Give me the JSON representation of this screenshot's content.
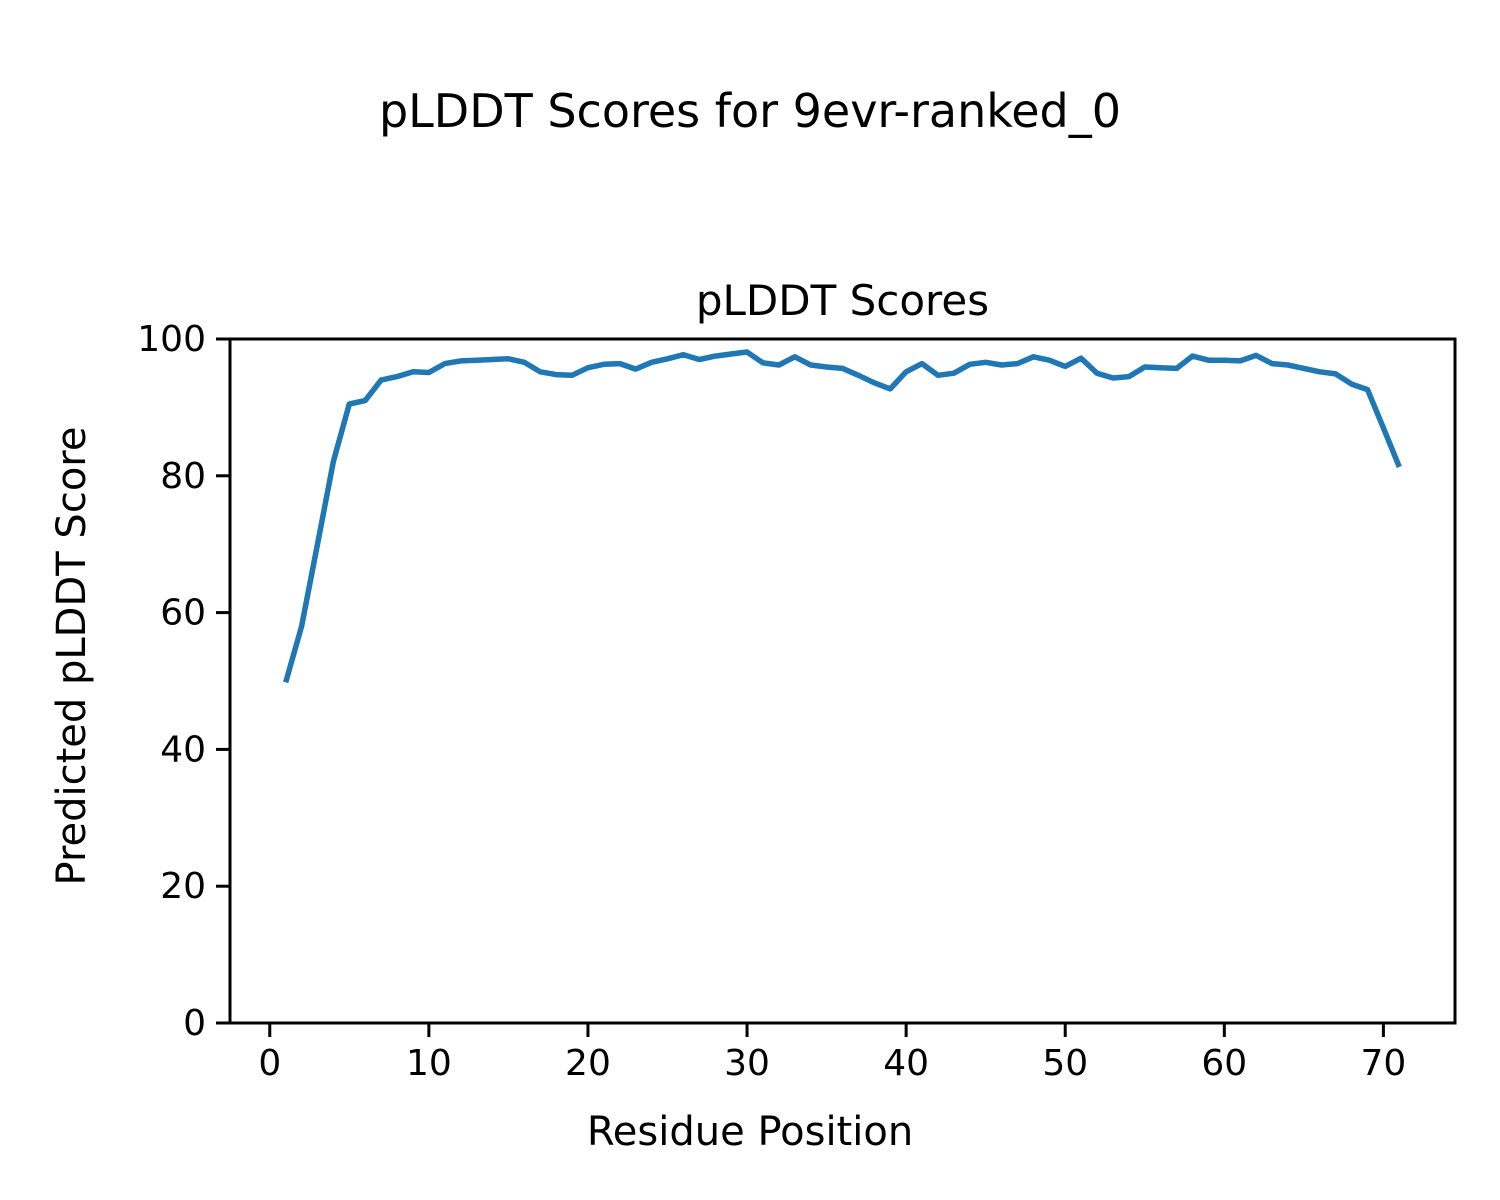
{
  "figure": {
    "suptitle": "pLDDT Scores for 9evr-ranked_0",
    "background": "#ffffff"
  },
  "chart_data": {
    "type": "line",
    "title": "pLDDT Scores",
    "xlabel": "Residue Position",
    "ylabel": "Predicted pLDDT Score",
    "series_name": "pLDDT",
    "line_color": "#1f77b4",
    "line_width": 5.5,
    "axis_color": "#000000",
    "grid": false,
    "legend": false,
    "xlim": [
      -2.5,
      74.5
    ],
    "ylim": [
      0,
      100
    ],
    "xticks": [
      0,
      10,
      20,
      30,
      40,
      50,
      60,
      70
    ],
    "yticks": [
      0,
      20,
      40,
      60,
      80,
      100
    ],
    "x": [
      1,
      2,
      3,
      4,
      5,
      6,
      7,
      8,
      9,
      10,
      11,
      12,
      13,
      14,
      15,
      16,
      17,
      18,
      19,
      20,
      21,
      22,
      23,
      24,
      25,
      26,
      27,
      28,
      29,
      30,
      31,
      32,
      33,
      34,
      35,
      36,
      37,
      38,
      39,
      40,
      41,
      42,
      43,
      44,
      45,
      46,
      47,
      48,
      49,
      50,
      51,
      52,
      53,
      54,
      55,
      56,
      57,
      58,
      59,
      60,
      61,
      62,
      63,
      64,
      65,
      66,
      67,
      68,
      69,
      70,
      71
    ],
    "values": [
      49.8,
      58.0,
      70.0,
      82.1,
      90.5,
      91.0,
      94.0,
      94.5,
      95.2,
      95.1,
      96.4,
      96.8,
      96.9,
      97.0,
      97.1,
      96.6,
      95.2,
      94.8,
      94.7,
      95.8,
      96.3,
      96.4,
      95.6,
      96.6,
      97.1,
      97.7,
      97.0,
      97.5,
      97.8,
      98.1,
      96.5,
      96.2,
      97.4,
      96.2,
      95.9,
      95.7,
      94.7,
      93.6,
      92.7,
      95.2,
      96.4,
      94.7,
      95.0,
      96.3,
      96.6,
      96.2,
      96.4,
      97.4,
      96.9,
      96.0,
      97.2,
      95.0,
      94.3,
      94.5,
      95.9,
      95.8,
      95.7,
      97.5,
      96.9,
      96.9,
      96.8,
      97.6,
      96.4,
      96.2,
      95.7,
      95.2,
      94.9,
      93.4,
      92.6,
      87.0,
      81.3
    ]
  }
}
